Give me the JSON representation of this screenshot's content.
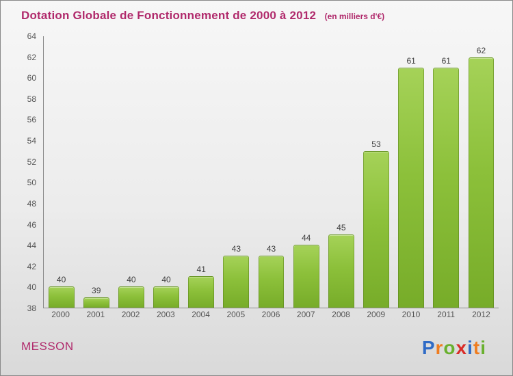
{
  "title": "Dotation Globale de Fonctionnement de 2000 à 2012",
  "subtitle": "(en milliers d'€)",
  "footer": {
    "company": "MESSON"
  },
  "logo": {
    "name": "Proxiti",
    "letters": [
      {
        "char": "P",
        "color": "#2f6bc6"
      },
      {
        "char": "r",
        "color": "#ef7d20"
      },
      {
        "char": "o",
        "color": "#69b02e"
      },
      {
        "char": "x",
        "color": "#d92b27"
      },
      {
        "char": "i",
        "color": "#2f6bc6"
      },
      {
        "char": "t",
        "color": "#ef7d20"
      },
      {
        "char": "i",
        "color": "#69b02e"
      }
    ]
  },
  "colors": {
    "accent_magenta": "#b0296b",
    "bar_green": "#84bb35",
    "axis_gray": "#555555"
  },
  "chart_data": {
    "type": "bar",
    "title": "Dotation Globale de Fonctionnement de 2000 à 2012",
    "units_label": "(en milliers d'€)",
    "categories": [
      "2000",
      "2001",
      "2002",
      "2003",
      "2004",
      "2005",
      "2006",
      "2007",
      "2008",
      "2009",
      "2010",
      "2011",
      "2012"
    ],
    "values": [
      40,
      39,
      40,
      40,
      41,
      43,
      43,
      44,
      45,
      53,
      61,
      61,
      62
    ],
    "xlabel": "",
    "ylabel": "",
    "ylim": [
      38,
      64
    ],
    "ytick_step": 2,
    "grid": false,
    "legend": false
  }
}
